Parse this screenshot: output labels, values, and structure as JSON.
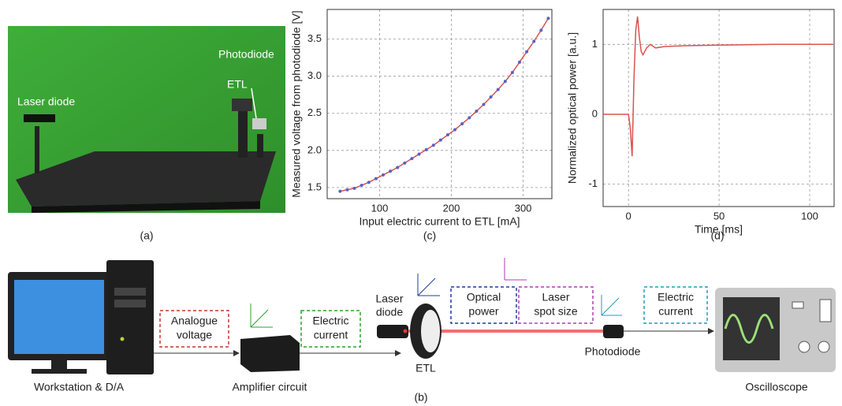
{
  "photo": {
    "caption": "(a)",
    "labels": [
      "Laser diode",
      "ETL",
      "Photodiode"
    ]
  },
  "chart_data": [
    {
      "type": "line",
      "caption": "(c)",
      "x_label": "Input electric current to ETL [mA]",
      "y_label": "Measured voltage from photodiode [V]",
      "x": [
        45,
        55,
        65,
        75,
        85,
        95,
        105,
        115,
        125,
        135,
        145,
        155,
        165,
        175,
        185,
        195,
        205,
        215,
        225,
        235,
        245,
        255,
        265,
        275,
        285,
        295,
        305,
        315,
        325,
        335
      ],
      "values": [
        1.45,
        1.47,
        1.49,
        1.53,
        1.57,
        1.62,
        1.67,
        1.72,
        1.77,
        1.83,
        1.89,
        1.95,
        2.01,
        2.07,
        2.14,
        2.21,
        2.28,
        2.36,
        2.44,
        2.53,
        2.62,
        2.72,
        2.82,
        2.93,
        3.05,
        3.19,
        3.33,
        3.47,
        3.62,
        3.78
      ],
      "color": "#d9534f",
      "marker_color": "#5a5fc8",
      "xlim": [
        27,
        340
      ],
      "ylim": [
        1.35,
        3.9
      ],
      "xticks": [
        100,
        200,
        300
      ],
      "yticks": [
        1.5,
        {
          "value": 2,
          "label": "2.0"
        },
        2.5,
        {
          "value": 3,
          "label": "3.0"
        },
        3.5
      ],
      "grid": true
    },
    {
      "type": "line",
      "caption": "(d)",
      "x_label": "Time [ms]",
      "y_label": "Normalized optical power [a.u.]",
      "x": [
        -14,
        -2,
        0,
        1,
        2,
        3,
        4,
        5,
        6,
        7,
        8,
        10,
        12,
        15,
        20,
        30,
        50,
        80,
        113
      ],
      "values": [
        0,
        0,
        0,
        -0.2,
        -0.6,
        0.5,
        1.2,
        1.4,
        1.1,
        0.9,
        0.85,
        0.95,
        1.0,
        0.95,
        0.97,
        0.98,
        0.99,
        1.0,
        1.0
      ],
      "color": "#d9534f",
      "xlim": [
        -14,
        113.5
      ],
      "ylim": [
        -1.32,
        1.5
      ],
      "xticks": [
        0,
        50,
        100
      ],
      "yticks": [
        -1,
        0,
        1
      ],
      "grid": true
    }
  ],
  "diagram": {
    "caption": "(b)",
    "nodes": [
      "Workstation & D/A",
      "Amplifier circuit",
      "ETL",
      "Photodiode",
      "Oscilloscope"
    ],
    "laser_label": [
      "Laser",
      "diode"
    ],
    "signals": [
      {
        "lines": [
          "Analogue",
          "voltage"
        ],
        "color": "#c0392b"
      },
      {
        "lines": [
          "Electric",
          "current"
        ],
        "color": "#2ca02c"
      },
      {
        "lines": [
          "Optical",
          "power"
        ],
        "color": "#1f3c99"
      },
      {
        "lines": [
          "Laser",
          "spot size"
        ],
        "color": "#b03ab5"
      },
      {
        "lines": [
          "Electric",
          "current"
        ],
        "color": "#17a2b8"
      }
    ]
  }
}
